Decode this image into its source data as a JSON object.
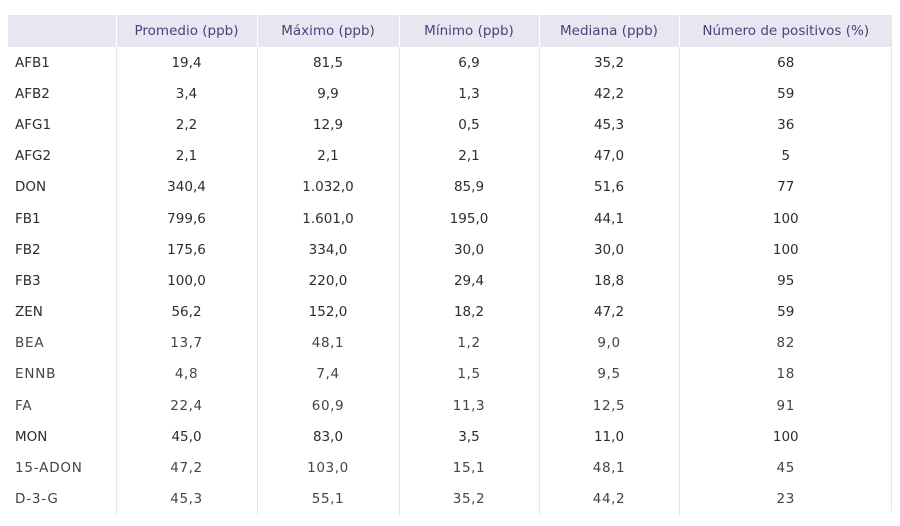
{
  "table": {
    "headers": [
      "",
      "Promedio (ppb)",
      "Máximo (ppb)",
      "Mínimo (ppb)",
      "Mediana (ppb)",
      "Número de positivos (%)"
    ],
    "rows": [
      [
        "AFB1",
        "19,4",
        "81,5",
        "6,9",
        "35,2",
        "68"
      ],
      [
        "AFB2",
        "3,4",
        "9,9",
        "1,3",
        "42,2",
        "59"
      ],
      [
        "AFG1",
        "2,2",
        "12,9",
        "0,5",
        "45,3",
        "36"
      ],
      [
        "AFG2",
        "2,1",
        "2,1",
        "2,1",
        "47,0",
        "5"
      ],
      [
        "DON",
        "340,4",
        "1.032,0",
        "85,9",
        "51,6",
        "77"
      ],
      [
        "FB1",
        "799,6",
        "1.601,0",
        "195,0",
        "44,1",
        "100"
      ],
      [
        "FB2",
        "175,6",
        "334,0",
        "30,0",
        "30,0",
        "100"
      ],
      [
        "FB3",
        "100,0",
        "220,0",
        "29,4",
        "18,8",
        "95"
      ],
      [
        "ZEN",
        "56,2",
        "152,0",
        "18,2",
        "47,2",
        "59"
      ],
      [
        "BEA",
        "13,7",
        "48,1",
        "1,2",
        "9,0",
        "82"
      ],
      [
        "ENNB",
        "4,8",
        "7,4",
        "1,5",
        "9,5",
        "18"
      ],
      [
        "FA",
        "22,4",
        "60,9",
        "11,3",
        "12,5",
        "91"
      ],
      [
        "MON",
        "45,0",
        "83,0",
        "3,5",
        "11,0",
        "100"
      ],
      [
        "15-ADON",
        "47,2",
        "103,0",
        "15,1",
        "48,1",
        "45"
      ],
      [
        "D-3-G",
        "45,3",
        "55,1",
        "35,2",
        "44,2",
        "23"
      ]
    ]
  },
  "colors": {
    "header_bg": "#e8e6f1",
    "header_text": "#4e3f7a",
    "body_text": "#2d2d2d",
    "rule": "#e6e3ef"
  }
}
